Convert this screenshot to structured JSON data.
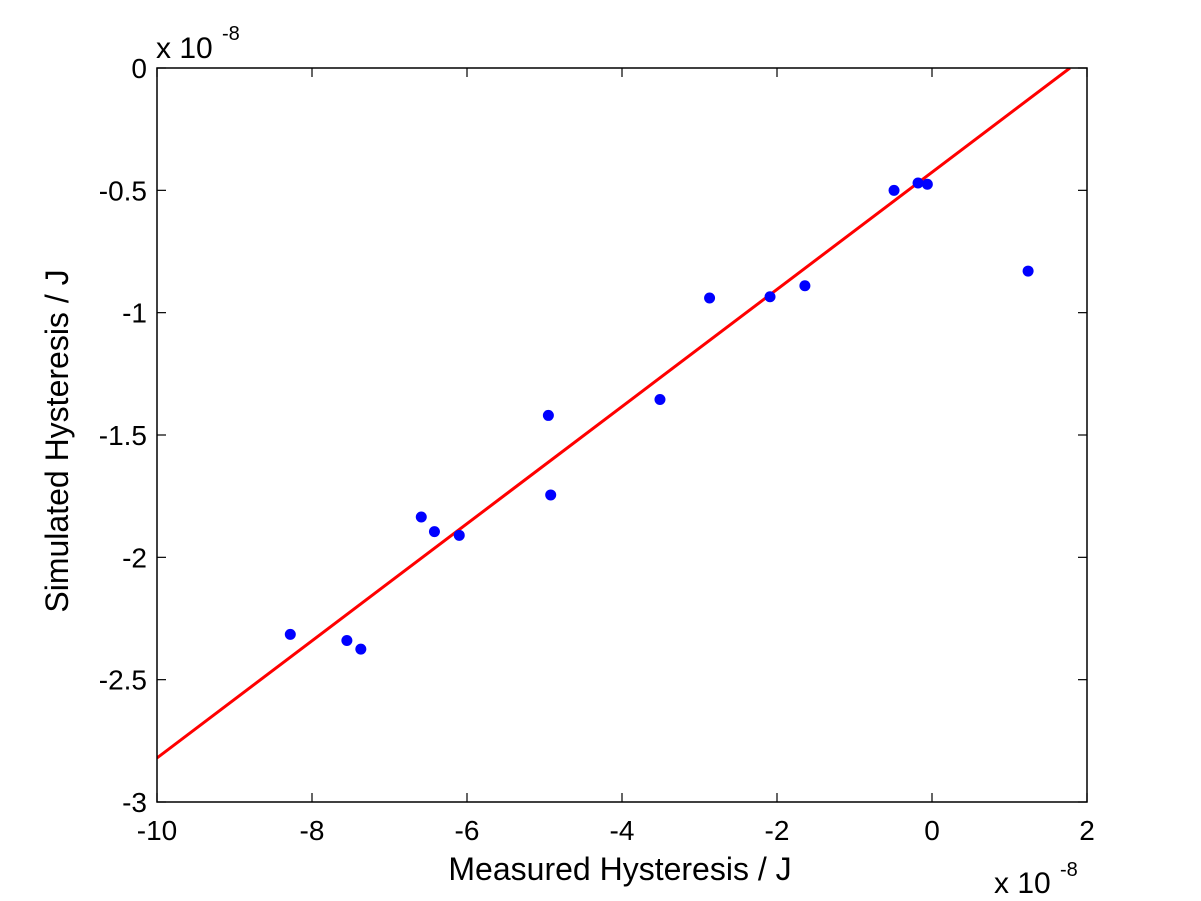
{
  "chart_data": {
    "type": "scatter",
    "xlabel": "Measured Hysteresis / J",
    "ylabel": "Simulated Hysteresis / J",
    "xlim": [
      -10,
      2
    ],
    "ylim": [
      -3,
      0
    ],
    "x_ticks": [
      -10,
      -8,
      -6,
      -4,
      -2,
      0,
      2
    ],
    "y_ticks": [
      -3,
      -2.5,
      -2,
      -1.5,
      -1,
      -0.5,
      0
    ],
    "x_tick_labels": [
      "-10",
      "-8",
      "-6",
      "-4",
      "-2",
      "0",
      "2"
    ],
    "y_tick_labels": [
      "-3",
      "-2.5",
      "-2",
      "-1.5",
      "-1",
      "-0.5",
      "0"
    ],
    "x_multiplier": {
      "base": "x 10",
      "exponent": "-8"
    },
    "y_multiplier": {
      "base": "x 10",
      "exponent": "-8"
    },
    "grid": false,
    "series": [
      {
        "name": "data",
        "kind": "scatter",
        "color": "#0000ff",
        "x": [
          -8.28,
          -7.55,
          -7.37,
          -6.59,
          -6.42,
          -6.1,
          -4.95,
          -4.92,
          -3.51,
          -2.87,
          -2.09,
          -1.64,
          -0.49,
          -0.18,
          -0.06,
          1.24
        ],
        "y": [
          -2.315,
          -2.34,
          -2.375,
          -1.835,
          -1.895,
          -1.91,
          -1.42,
          -1.745,
          -1.355,
          -0.94,
          -0.935,
          -0.89,
          -0.5,
          -0.47,
          -0.475,
          -0.83
        ]
      },
      {
        "name": "fit",
        "kind": "line",
        "color": "#ff0000",
        "x": [
          -10,
          1.78
        ],
        "y": [
          -2.82,
          0
        ]
      }
    ]
  }
}
